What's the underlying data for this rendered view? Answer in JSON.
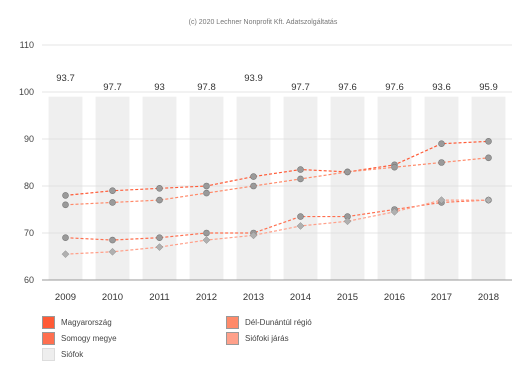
{
  "chart_data": {
    "type": "line",
    "title": "(c) 2020 Lechner Nonprofit Kft. Adatszolgáltatás",
    "categories": [
      "2009",
      "2010",
      "2011",
      "2012",
      "2013",
      "2014",
      "2015",
      "2016",
      "2017",
      "2018"
    ],
    "top_labels": [
      "93.7",
      "97.7",
      "93",
      "97.8",
      "93.9",
      "97.7",
      "97.6",
      "97.6",
      "93.6",
      "95.9"
    ],
    "ylim": [
      60,
      110
    ],
    "yticks": [
      60,
      70,
      80,
      90,
      100,
      110
    ],
    "grid": true,
    "legend_position": "bottom",
    "series": [
      {
        "name": "Magyarország",
        "color": "#ff5a36",
        "marker": "circle",
        "values": [
          78.0,
          79.0,
          79.5,
          80.0,
          82.0,
          83.5,
          83.0,
          84.5,
          89.0,
          89.5
        ]
      },
      {
        "name": "Dél-Dunántúl régió",
        "color": "#ff8a6a",
        "marker": "circle",
        "values": [
          76.0,
          76.5,
          77.0,
          78.5,
          80.0,
          81.5,
          83.0,
          84.0,
          85.0,
          86.0
        ]
      },
      {
        "name": "Somogy megye",
        "color": "#ff6f4f",
        "marker": "circle",
        "values": [
          69.0,
          68.5,
          69.0,
          70.0,
          70.0,
          73.5,
          73.5,
          75.0,
          76.5,
          77.0
        ]
      },
      {
        "name": "Siófoki járás",
        "color": "#ffa08a",
        "marker": "diamond",
        "values": [
          65.5,
          66.0,
          67.0,
          68.5,
          69.5,
          71.5,
          72.5,
          74.5,
          77.0,
          77.0
        ]
      },
      {
        "name": "Siófok",
        "color": "#eeeeee",
        "marker": "none",
        "values": [
          null,
          null,
          null,
          null,
          null,
          null,
          null,
          null,
          null,
          null
        ]
      }
    ]
  },
  "legend": [
    {
      "label": "Magyarország",
      "color": "#ff5a36"
    },
    {
      "label": "Dél-Dunántúl régió",
      "color": "#ff8a6a"
    },
    {
      "label": "Somogy megye",
      "color": "#ff6f4f"
    },
    {
      "label": "Siófoki járás",
      "color": "#ffa08a"
    },
    {
      "label": "Siófok",
      "color": "#eeeeee"
    }
  ]
}
